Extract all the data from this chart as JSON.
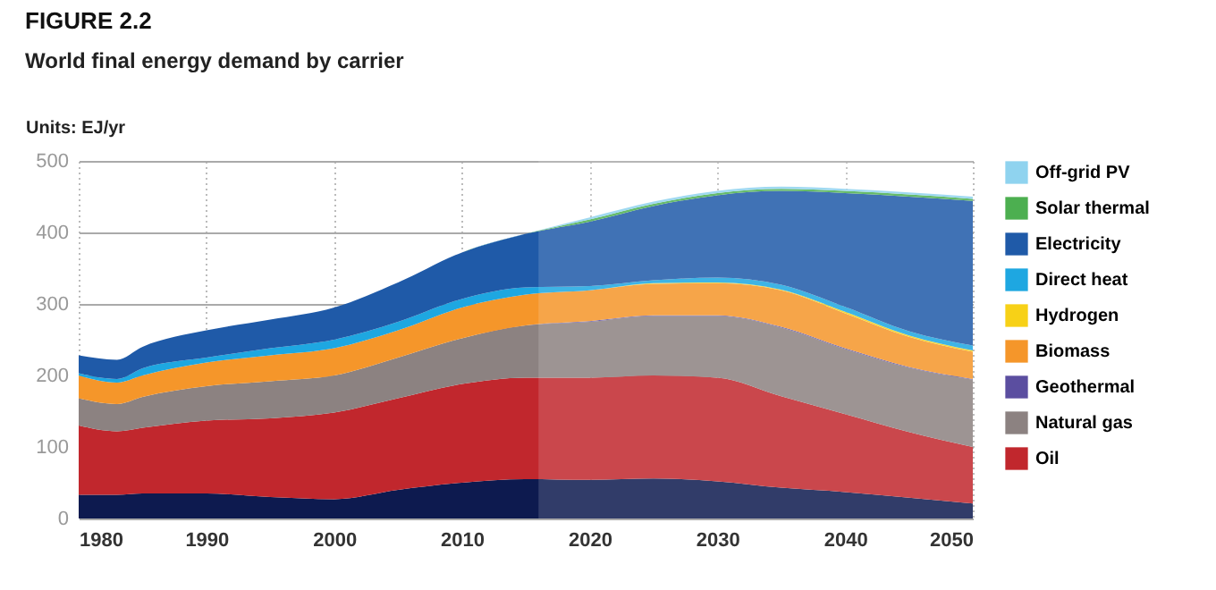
{
  "chart_data": {
    "type": "area",
    "stacked": true,
    "title": "FIGURE 2.2",
    "subtitle": "World final energy demand by carrier",
    "ylabel": "Units: EJ/yr",
    "x": [
      1980,
      1983,
      1985,
      1990,
      1995,
      2000,
      2005,
      2010,
      2015,
      2020,
      2025,
      2030,
      2035,
      2040,
      2045,
      2050
    ],
    "series": [
      {
        "color": "#0d1a4f",
        "values": [
          33,
          33,
          35,
          35,
          30,
          27,
          40,
          50,
          55,
          54,
          56,
          52,
          43,
          37,
          29,
          21
        ]
      },
      {
        "name": "Oil",
        "color": "#c1272d",
        "values": [
          97,
          89,
          92,
          102,
          110,
          121,
          128,
          138,
          142,
          143,
          144,
          145,
          128,
          109,
          92,
          79
        ]
      },
      {
        "name": "Natural gas",
        "color": "#8c8281",
        "values": [
          38,
          38,
          43,
          48,
          52,
          52,
          57,
          64,
          73,
          78,
          83,
          86,
          96,
          91,
          90,
          94
        ]
      },
      {
        "name": "Geothermal",
        "color": "#5b4ea0",
        "values": [
          0,
          0,
          0,
          0,
          0,
          0,
          0,
          0,
          0,
          1,
          1,
          1,
          1,
          1,
          1,
          1
        ]
      },
      {
        "name": "Biomass",
        "color": "#f5962a",
        "values": [
          32,
          30,
          30,
          33,
          36,
          38,
          38,
          43,
          43,
          43,
          44,
          45,
          51,
          49,
          42,
          38
        ]
      },
      {
        "name": "Hydrogen",
        "color": "#f7d117",
        "values": [
          0,
          0,
          0,
          0,
          0,
          0,
          0,
          0,
          0,
          0,
          1,
          1,
          1,
          2,
          2,
          2
        ]
      },
      {
        "name": "Direct heat",
        "color": "#1ea7e1",
        "values": [
          3,
          5,
          10,
          7,
          10,
          12,
          12,
          12,
          10,
          6,
          4,
          7,
          7,
          7,
          6,
          7
        ]
      },
      {
        "name": "Electricity",
        "color": "#1f5aa8",
        "values": [
          25,
          27,
          30,
          38,
          40,
          45,
          55,
          65,
          75,
          90,
          104,
          115,
          131,
          159,
          188,
          202
        ]
      },
      {
        "name": "Solar thermal",
        "color": "#4caf50",
        "values": [
          0,
          0,
          0,
          0,
          0,
          0,
          0,
          0,
          0,
          3,
          3,
          3,
          3,
          3,
          3,
          3
        ]
      },
      {
        "name": "Off-grid PV",
        "color": "#8fd3ef",
        "values": [
          0,
          0,
          0,
          0,
          0,
          0,
          0,
          0,
          0,
          3,
          3,
          3,
          3,
          3,
          3,
          3
        ]
      }
    ],
    "xlim": [
      1980,
      2050
    ],
    "xticks": [
      1980,
      1990,
      2000,
      2010,
      2020,
      2030,
      2040,
      2050
    ],
    "ylim": [
      0,
      500
    ],
    "yticks": [
      0,
      100,
      200,
      300,
      400,
      500
    ],
    "bands": [
      {
        "axis": "x",
        "from": 2016,
        "to": 2050,
        "color": "#ffffff"
      }
    ],
    "grid": true,
    "legend": "right"
  }
}
